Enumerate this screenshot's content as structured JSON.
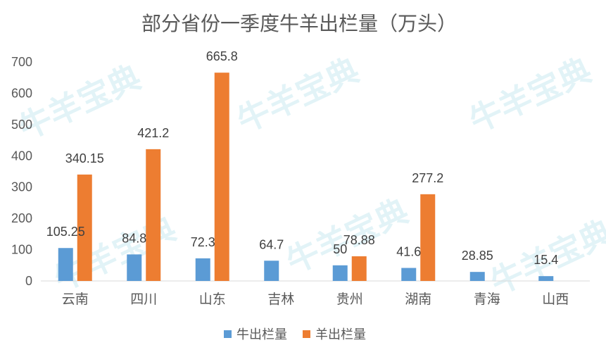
{
  "chart_data": {
    "type": "bar",
    "title": "部分省份一季度牛羊出栏量（万头）",
    "categories": [
      "云南",
      "四川",
      "山东",
      "吉林",
      "贵州",
      "湖南",
      "青海",
      "山西"
    ],
    "series": [
      {
        "name": "牛出栏量",
        "color": "#5b9bd5",
        "values": [
          105.25,
          84.8,
          72.3,
          64.7,
          50,
          41.6,
          28.85,
          15.4
        ],
        "labels": [
          "105.25",
          "84.8",
          "72.3",
          "64.7",
          "50",
          "41.6",
          "28.85",
          "15.4"
        ]
      },
      {
        "name": "羊出栏量",
        "color": "#ed7d31",
        "values": [
          340.15,
          421.2,
          665.8,
          null,
          78.88,
          277.2,
          null,
          null
        ],
        "labels": [
          "340.15",
          "421.2",
          "665.8",
          "",
          "78.88",
          "277.2",
          "",
          ""
        ]
      }
    ],
    "yticks": [
      0,
      100,
      200,
      300,
      400,
      500,
      600,
      700
    ],
    "ylim": [
      0,
      700
    ],
    "grid": false,
    "legend": "bottom",
    "watermark": "牛羊宝典"
  }
}
